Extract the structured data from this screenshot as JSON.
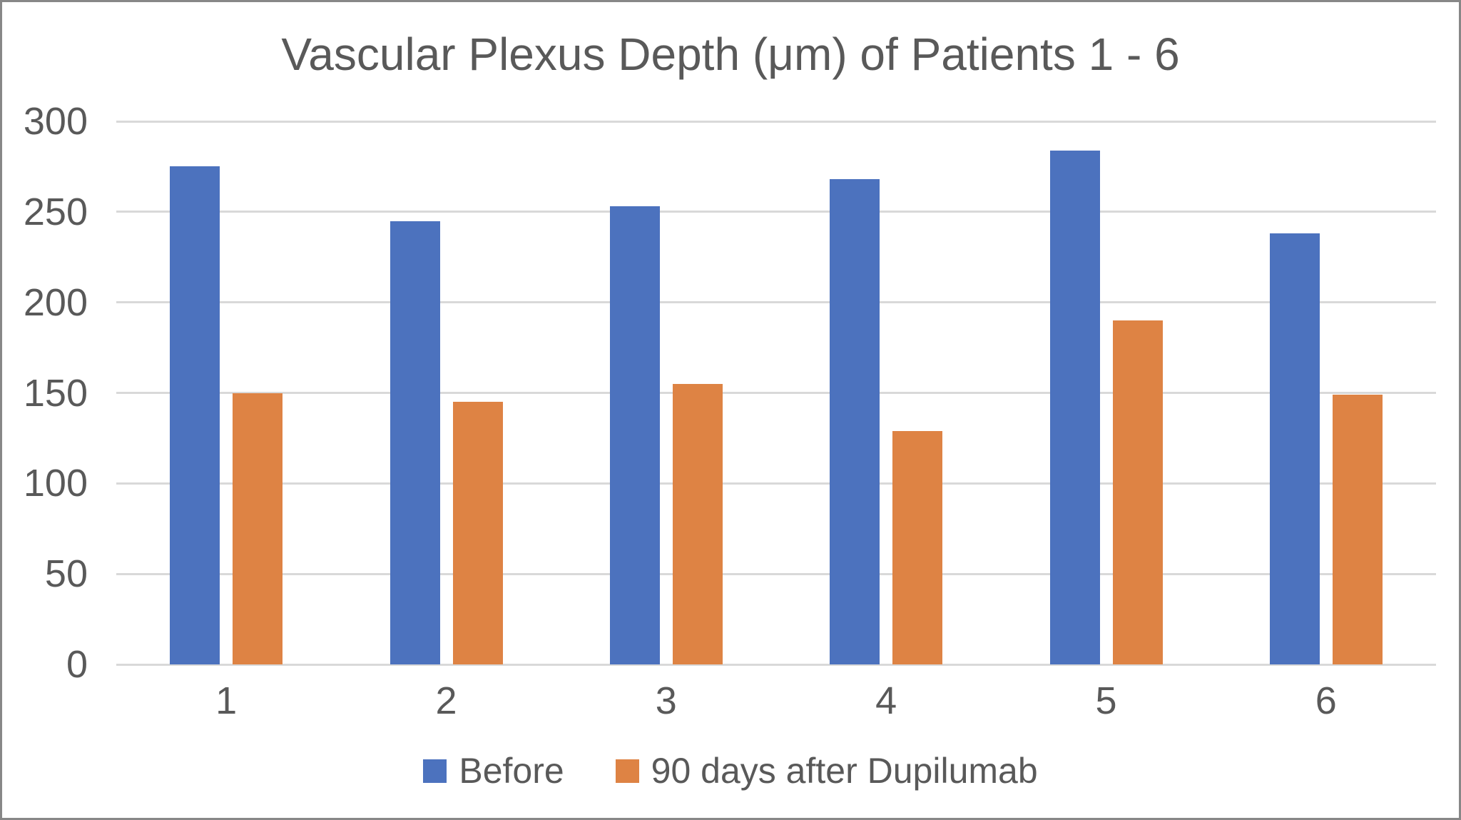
{
  "chart_data": {
    "type": "bar",
    "title": "Vascular Plexus Depth (μm) of Patients 1 - 6",
    "categories": [
      "1",
      "2",
      "3",
      "4",
      "5",
      "6"
    ],
    "series": [
      {
        "name": "Before",
        "color": "#4C72BE",
        "values": [
          275,
          245,
          253,
          268,
          284,
          238
        ]
      },
      {
        "name": "90 days after Dupilumab",
        "color": "#DE8344",
        "values": [
          150,
          145,
          155,
          129,
          190,
          149
        ]
      }
    ],
    "xlabel": "",
    "ylabel": "",
    "ylim": [
      0,
      300
    ],
    "yticks": [
      0,
      50,
      100,
      150,
      200,
      250,
      300
    ],
    "grid": true,
    "legend_position": "bottom"
  },
  "style": {
    "background": "#FFFFFF",
    "border_color": "#878787",
    "text_color": "#595959",
    "grid_color": "#D9D9D9"
  }
}
